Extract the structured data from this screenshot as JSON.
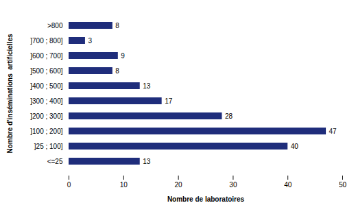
{
  "chart_data": {
    "type": "bar",
    "orientation": "horizontal",
    "categories": [
      "<=25",
      "]25 ; 100]",
      "]100 ; 200]",
      "]200 ; 300]",
      "]300 ; 400]",
      "]400 ; 500]",
      "]500 ; 600]",
      "]600 ; 700]",
      "]700 ; 800]",
      ">800"
    ],
    "values": [
      13,
      40,
      47,
      28,
      17,
      13,
      8,
      9,
      3,
      8
    ],
    "color": "#1F2D7B",
    "xlabel": "Nombre de laboratoires",
    "ylabel": "Nombre d'inséminations  artificielles",
    "xlim": [
      0,
      50
    ],
    "xticks": [
      0,
      10,
      20,
      30,
      40,
      50
    ],
    "data_labels": true
  }
}
